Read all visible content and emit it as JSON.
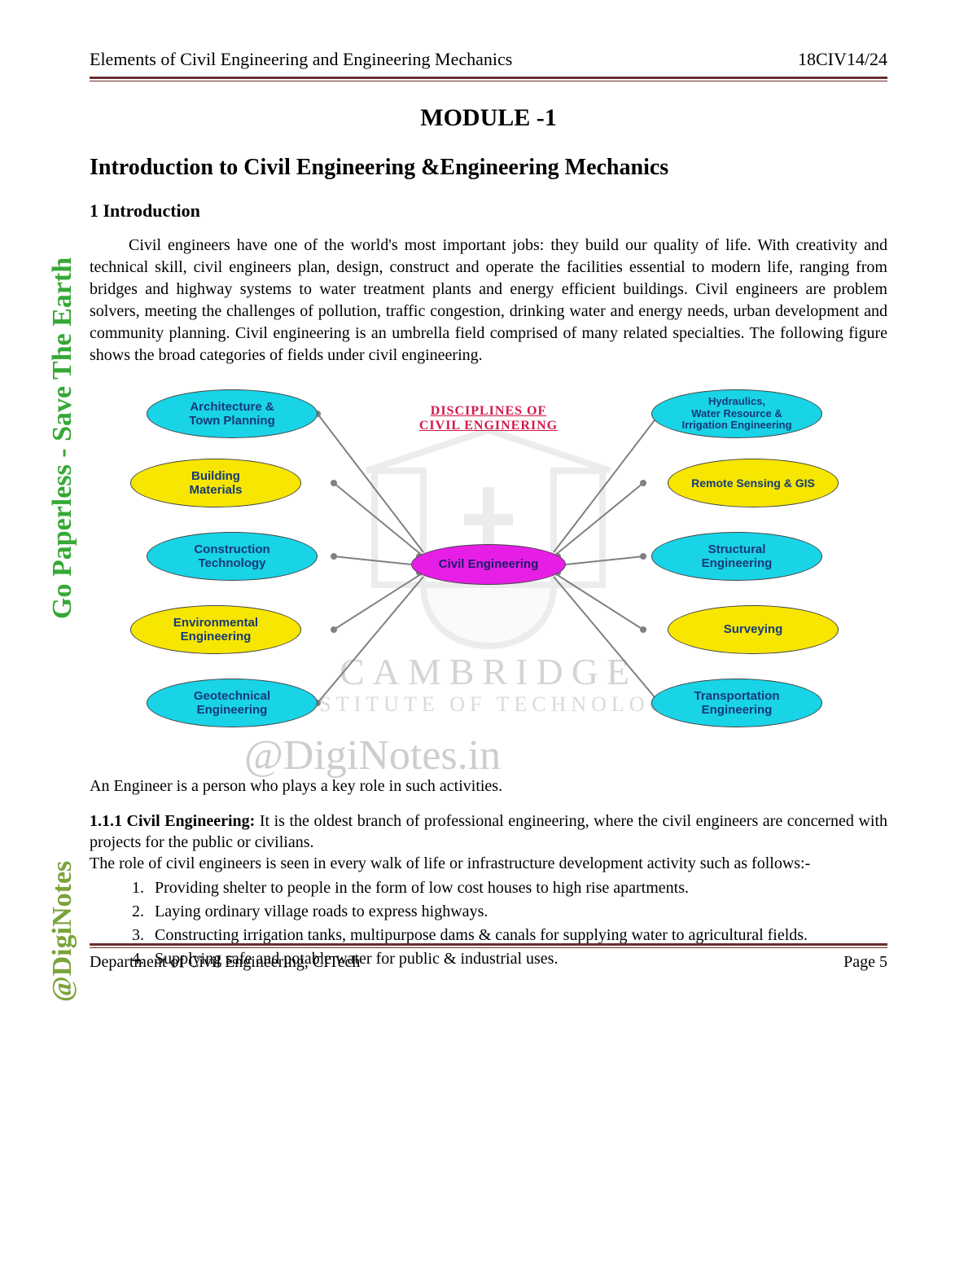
{
  "header": {
    "left": "Elements of Civil Engineering and Engineering Mechanics",
    "right": "18CIV14/24"
  },
  "rule_color": "#6b2d2d",
  "module_title": "MODULE -1",
  "subtitle": "Introduction to Civil Engineering &Engineering Mechanics",
  "section_1_head": "1 Introduction",
  "intro_para": "Civil engineers have one of the world's most important jobs: they build our quality of life. With creativity and technical skill, civil engineers plan, design, construct and operate the facilities essential to modern life, ranging from bridges and highway systems to water treatment plants and energy efficient buildings. Civil engineers are problem solvers, meeting the challenges of pollution, traffic congestion, drinking water and energy needs, urban development and community planning. Civil engineering is an umbrella field comprised of many related specialties. The following figure shows the broad categories of fields under civil engineering.",
  "diagram": {
    "type": "bubble-map",
    "label_line1": "DISCIPLINES OF",
    "label_line2": "CIVIL ENGINERING",
    "label_color": "#d11a4a",
    "center": {
      "text": "Civil Engineering",
      "fill": "#e61ee6",
      "text_color": "#1a1a6b"
    },
    "colors": {
      "cyan": "#19d3e6",
      "yellow": "#f6e600",
      "magenta": "#e61ee6",
      "node_text": "#173a78",
      "connector": "#808080"
    },
    "left_nodes": [
      {
        "text": "Architecture &\nTown Planning",
        "fill": "#19d3e6"
      },
      {
        "text": "Building\nMaterials",
        "fill": "#f6e600"
      },
      {
        "text": "Construction\nTechnology",
        "fill": "#19d3e6"
      },
      {
        "text": "Environmental\nEngineering",
        "fill": "#f6e600"
      },
      {
        "text": "Geotechnical\nEngineering",
        "fill": "#19d3e6"
      }
    ],
    "right_nodes": [
      {
        "text": "Hydraulics,\nWater Resource &\nIrrigation Engineering",
        "fill": "#19d3e6"
      },
      {
        "text": "Remote Sensing & GIS",
        "fill": "#f6e600"
      },
      {
        "text": "Structural\nEngineering",
        "fill": "#19d3e6"
      },
      {
        "text": "Surveying",
        "fill": "#f6e600"
      },
      {
        "text": "Transportation\nEngineering",
        "fill": "#19d3e6"
      }
    ]
  },
  "watermarks": {
    "cambridge": "CAMBRIDGE",
    "institute": "INSTITUTE OF TECHNOLOGY",
    "diginotes": "@DigiNotes.in"
  },
  "after_diagram": "An Engineer is a person who plays a key role in such activities.",
  "subsection": {
    "lead": "1.1.1 Civil Engineering:",
    "text1": " It is the oldest branch of professional engineering, where the civil engineers are concerned with projects for the public or civilians.",
    "text2": "The role of civil engineers is seen in every walk of life or infrastructure development activity such as follows:-"
  },
  "list_items": [
    "Providing shelter to people in the form of low cost houses to high rise apartments.",
    "Laying ordinary village roads to express highways.",
    "Constructing irrigation tanks, multipurpose dams & canals for supplying water to agricultural fields.",
    "Supplying safe and potable water for public & industrial uses."
  ],
  "footer": {
    "left": "Department of Civil Engineering, CITech",
    "right": "Page 5"
  },
  "side_labels": {
    "paperless": "Go Paperless - Save The Earth",
    "diginotes": "@DigiNotes"
  }
}
